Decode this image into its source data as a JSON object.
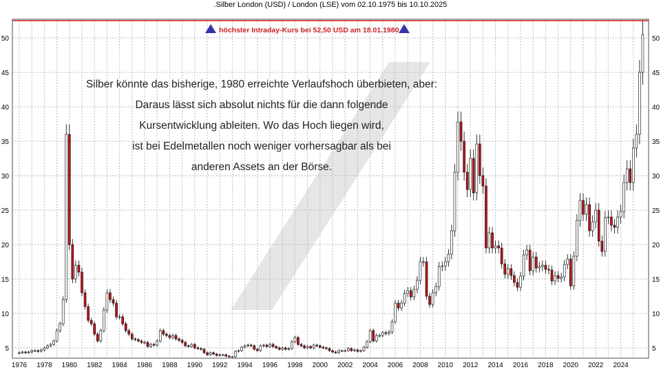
{
  "chart_data": {
    "type": "candlestick",
    "title": ".Silber London (USD) / London (LSE) vom 02.10.1975 bis 10.10.2025",
    "xlabel": "",
    "ylabel": "",
    "xlim": [
      1975.5,
      2026.3
    ],
    "ylim": [
      3.5,
      53.5
    ],
    "grid": true,
    "x_ticks": [
      "1976",
      "1978",
      "1980",
      "1982",
      "1984",
      "1986",
      "1988",
      "1990",
      "1992",
      "1994",
      "1996",
      "1998",
      "2000",
      "2002",
      "2004",
      "2006",
      "2008",
      "2010",
      "2012",
      "2014",
      "2016",
      "2018",
      "2020",
      "2022",
      "2024"
    ],
    "y_ticks": [
      5,
      10,
      15,
      20,
      25,
      30,
      35,
      40,
      45,
      50
    ],
    "reference_line": {
      "value": 52.5,
      "color": "#cc2222",
      "label": "höchster Intraday-Kurs bei 52,50 USD am 18.01.1980"
    },
    "annotation": [
      "Silber könnte das bisherige, 1980 erreichte Verlaufshoch überbieten, aber:",
      "Daraus lässt sich absolut nichts für die dann folgende",
      "Kursentwicklung ableiten. Wo das Hoch liegen wird,",
      "ist bei Edelmetallen noch weniger vorhersagbar als bei",
      "anderen Assets an der Börse."
    ],
    "colors": {
      "up": "#ffffff",
      "down": "#c0161b",
      "outline": "#000000",
      "marker": "#3333aa"
    },
    "start_year": 1975.75,
    "period": "quarter",
    "close": [
      4.2,
      4.3,
      4.4,
      4.3,
      4.4,
      4.6,
      4.6,
      4.5,
      4.7,
      5.0,
      5.3,
      5.5,
      6.0,
      7.5,
      8.5,
      12,
      36,
      20,
      15,
      17,
      16,
      13,
      11,
      9,
      8.5,
      7,
      6,
      7.5,
      10.5,
      13,
      12,
      11.5,
      9.5,
      9.5,
      8.5,
      7.5,
      7,
      6.3,
      6.2,
      6.0,
      5.8,
      5.8,
      5.2,
      5.5,
      5.4,
      6.0,
      7.5,
      7.0,
      6.8,
      6.5,
      6.8,
      6.3,
      6.1,
      5.8,
      5.3,
      5.2,
      5.5,
      5.0,
      4.9,
      4.8,
      4.3,
      4.0,
      4.3,
      4.1,
      3.9,
      4.0,
      4.0,
      3.8,
      3.7,
      3.7,
      4.5,
      4.6,
      5.1,
      5.3,
      5.4,
      5.3,
      4.8,
      4.6,
      5.3,
      5.4,
      5.2,
      5.5,
      5.2,
      5.0,
      4.8,
      5.0,
      4.8,
      4.9,
      5.9,
      6.5,
      5.5,
      5.3,
      5.0,
      5.2,
      5.0,
      5.4,
      5.3,
      5.1,
      5.0,
      4.9,
      4.6,
      4.4,
      4.3,
      4.6,
      4.6,
      4.6,
      4.9,
      4.6,
      4.7,
      4.5,
      4.6,
      5.1,
      5.9,
      7.5,
      6.0,
      6.8,
      6.8,
      7.2,
      7.1,
      7.3,
      8.8,
      11.5,
      10.8,
      11.5,
      12.9,
      13.3,
      12.4,
      13.5,
      14.8,
      17.5,
      17.5,
      12.5,
      11.3,
      13,
      13.9,
      16.8,
      16.9,
      17.5,
      18.6,
      22,
      30.5,
      37.8,
      35,
      30.5,
      28,
      32.5,
      27.5,
      34.6,
      30,
      28.5,
      19.5,
      21.7,
      19.5,
      19.8,
      19.5,
      17.2,
      15.7,
      16.5,
      15.5,
      14.5,
      13.8,
      15.4,
      18.5,
      19.2,
      16.2,
      18.2,
      16.6,
      16.8,
      17,
      16.4,
      16.3,
      14.7,
      15.5,
      15.1,
      15.3,
      17.1,
      17.9,
      14,
      18.3,
      23.5,
      26.4,
      24.4,
      25.8,
      22,
      23.3,
      25,
      20.5,
      19,
      23.9,
      24,
      22.8,
      22.5,
      24,
      24.8,
      29,
      31,
      29,
      34,
      36,
      45,
      50.5
    ]
  }
}
